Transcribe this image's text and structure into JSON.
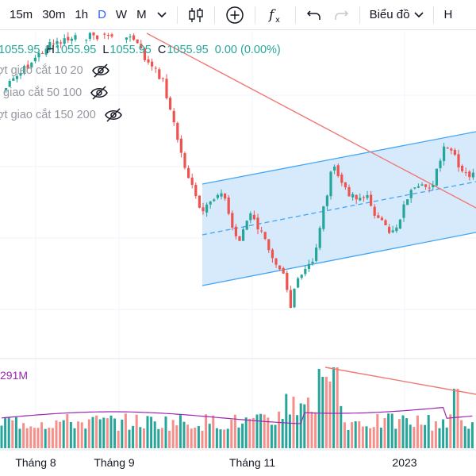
{
  "toolbar": {
    "intervals": [
      "15m",
      "30m",
      "1h",
      "D",
      "W",
      "M"
    ],
    "active_interval": "D",
    "chart_type_label": "Biểu đồ",
    "last_label": "H"
  },
  "legend": {
    "o_value": "1055.95",
    "h_key": "H",
    "h_value": "1055.95",
    "l_key": "L",
    "l_value": "1055.95",
    "c_key": "C",
    "c_value": "1055.95",
    "change": "0.00 (0.00%)",
    "indicators": [
      "ợt giao cắt 10 20",
      "t giao cắt 50 100",
      "ợt giao cắt 150 200"
    ]
  },
  "volume_label": "291M",
  "x_axis_labels": [
    "Tháng 8",
    "Tháng 9",
    "Tháng 11",
    "2023"
  ],
  "colors": {
    "up": "#26a69a",
    "down": "#ef5350",
    "vol_up": "#26a69a",
    "vol_down": "#f48f8b",
    "channel_fill": "#cfe6fb",
    "channel_line": "#42a5f5",
    "trendline": "#ef7a74",
    "volume_ma": "#9c27b0",
    "accent": "#2962ff"
  }
}
